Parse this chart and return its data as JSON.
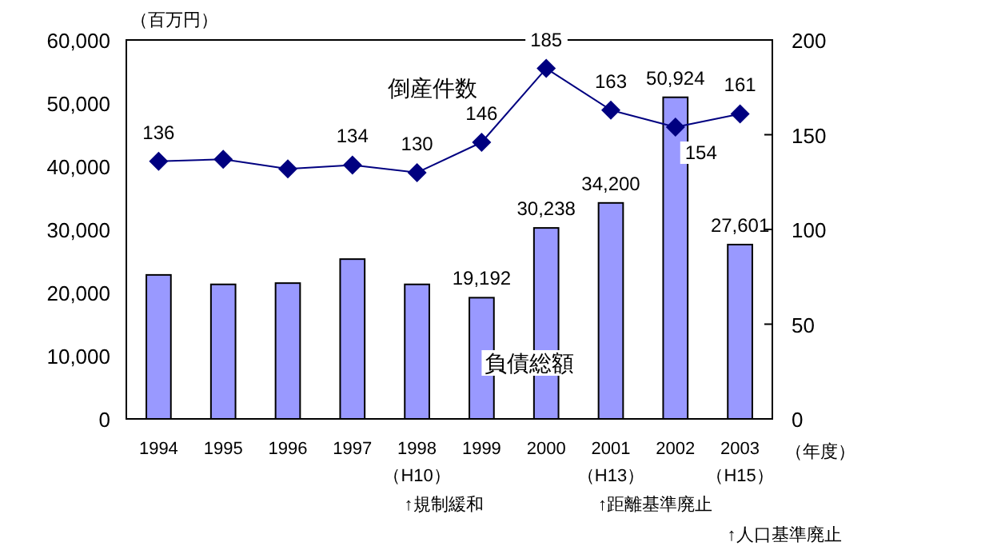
{
  "chart_data": {
    "type": "bar",
    "ylabel": "（百万円）",
    "xlabel": "（年度）",
    "categories": [
      "1994",
      "1995",
      "1996",
      "1997",
      "1998\n（H10）",
      "1999",
      "2000",
      "2001\n（H13）",
      "2002",
      "2003\n（H15）"
    ],
    "ylim": [
      0,
      60000
    ],
    "yticks": [
      {
        "value": 0,
        "label": "0"
      },
      {
        "value": 10000,
        "label": "10,000"
      },
      {
        "value": 20000,
        "label": "20,000"
      },
      {
        "value": 30000,
        "label": "30,000"
      },
      {
        "value": 40000,
        "label": "40,000"
      },
      {
        "value": 50000,
        "label": "50,000"
      },
      {
        "value": 60000,
        "label": "60,000"
      }
    ],
    "y2lim": [
      0,
      200
    ],
    "y2ticks": [
      0,
      50,
      100,
      150,
      200
    ],
    "legend": false,
    "grid": false,
    "series": [
      {
        "name": "負債総額",
        "color": "#9999ff",
        "values": [
          22800,
          21300,
          21500,
          25300,
          21300,
          19192,
          30238,
          34200,
          50924,
          27601
        ],
        "value_labels": [
          null,
          null,
          null,
          null,
          null,
          "19,192",
          "30,238",
          "34,200",
          "50,924",
          "27,601"
        ]
      },
      {
        "name": "倒産件数",
        "type": "line",
        "axis": "y2",
        "color": "#000080",
        "marker": "diamond",
        "values": [
          136,
          137,
          132,
          134,
          130,
          146,
          185,
          163,
          154,
          161
        ],
        "value_labels": [
          "136",
          null,
          null,
          "134",
          "130",
          "146",
          "185",
          "163",
          "154",
          "161"
        ]
      }
    ],
    "annotations": [
      "↑規制緩和",
      "↑距離基準廃止",
      "↑人口基準廃止"
    ]
  }
}
